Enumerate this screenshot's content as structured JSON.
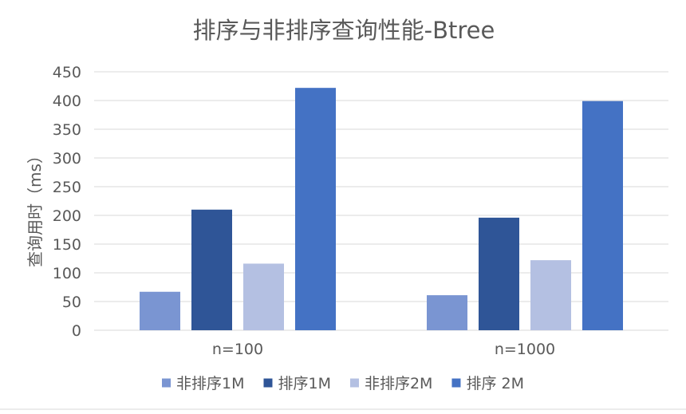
{
  "chart_data": {
    "type": "bar",
    "title": "排序与非排序查询性能-Btree",
    "xlabel": "",
    "ylabel": "查询用时（ms）",
    "categories": [
      "n=100",
      "n=1000"
    ],
    "series": [
      {
        "name": "非排序1M",
        "color": "#7a95d2",
        "values": [
          67,
          61
        ]
      },
      {
        "name": "排序1M",
        "color": "#2f5597",
        "values": [
          210,
          196
        ]
      },
      {
        "name": "非排序2M",
        "color": "#b4c0e2",
        "values": [
          116,
          122
        ]
      },
      {
        "name": "排序 2M",
        "color": "#4472c4",
        "values": [
          422,
          399
        ]
      }
    ],
    "ylim": [
      0,
      450
    ],
    "yticks": [
      0,
      50,
      100,
      150,
      200,
      250,
      300,
      350,
      400,
      450
    ],
    "grid": true,
    "legend_position": "bottom"
  }
}
